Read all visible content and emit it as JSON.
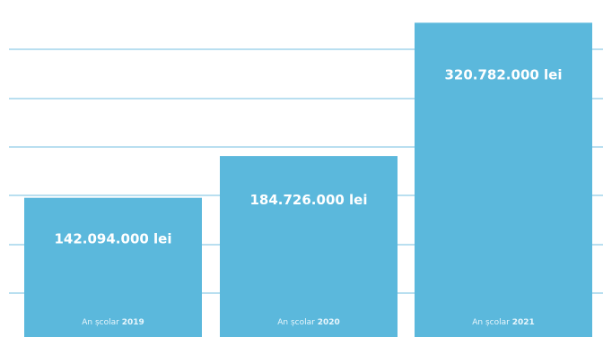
{
  "chart_data": {
    "type": "bar",
    "categories": [
      "2019",
      "2020",
      "2021"
    ],
    "category_prefix": "An școlar",
    "values": [
      142094000,
      184726000,
      320782000
    ],
    "value_labels": [
      "142.094.000 lei",
      "184.726.000 lei",
      "320.782.000 lei"
    ],
    "unit": "lei",
    "ylim": [
      0,
      344000000
    ],
    "grid": true,
    "colors": {
      "bar": "#5bb8dc",
      "gridline": "#b9dff0",
      "value_text": "#ffffff",
      "category_text": "#e9f6fc"
    }
  }
}
